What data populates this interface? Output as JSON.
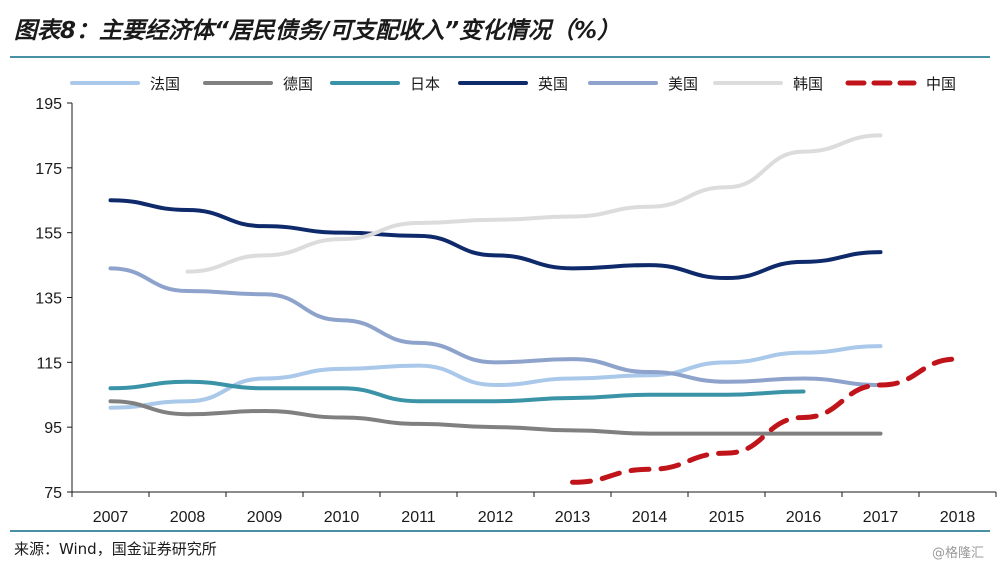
{
  "header": {
    "title": "图表8：主要经济体“居民债务/可支配收入”变化情况（%）"
  },
  "footer": {
    "source": "来源：Wind，国金证券研究所",
    "watermark": "@格隆汇"
  },
  "chart_data": {
    "type": "line",
    "title": "图表8：主要经济体“居民债务/可支配收入”变化情况（%）",
    "xlabel": "",
    "ylabel": "",
    "x": [
      "2007",
      "2008",
      "2009",
      "2010",
      "2011",
      "2012",
      "2013",
      "2014",
      "2015",
      "2016",
      "2017",
      "2018"
    ],
    "ylim": [
      75,
      195
    ],
    "yticks": [
      75,
      95,
      115,
      135,
      155,
      175,
      195
    ],
    "grid": false,
    "legend_position": "top",
    "series": [
      {
        "name": "法国",
        "color": "#a9c8ea",
        "dash": false,
        "values": [
          101,
          103,
          110,
          113,
          114,
          108,
          110,
          111,
          115,
          118,
          120,
          null
        ]
      },
      {
        "name": "德国",
        "color": "#808080",
        "dash": false,
        "values": [
          103,
          99,
          100,
          98,
          96,
          95,
          94,
          93,
          93,
          93,
          93,
          null
        ]
      },
      {
        "name": "日本",
        "color": "#3a93a6",
        "dash": false,
        "values": [
          107,
          109,
          107,
          107,
          103,
          103,
          104,
          105,
          105,
          106,
          null,
          null
        ]
      },
      {
        "name": "英国",
        "color": "#0f2a6b",
        "dash": false,
        "values": [
          165,
          162,
          157,
          155,
          154,
          148,
          144,
          145,
          141,
          146,
          149,
          null
        ]
      },
      {
        "name": "美国",
        "color": "#8ea3cc",
        "dash": false,
        "values": [
          144,
          137,
          136,
          128,
          121,
          115,
          116,
          112,
          109,
          110,
          108,
          null
        ]
      },
      {
        "name": "韩国",
        "color": "#dcdcdc",
        "dash": false,
        "values": [
          null,
          143,
          148,
          153,
          158,
          159,
          160,
          163,
          169,
          180,
          185,
          null
        ]
      },
      {
        "name": "中国",
        "color": "#c0141a",
        "dash": true,
        "values": [
          null,
          null,
          null,
          null,
          null,
          null,
          78,
          82,
          87,
          98,
          108,
          116
        ]
      }
    ]
  }
}
